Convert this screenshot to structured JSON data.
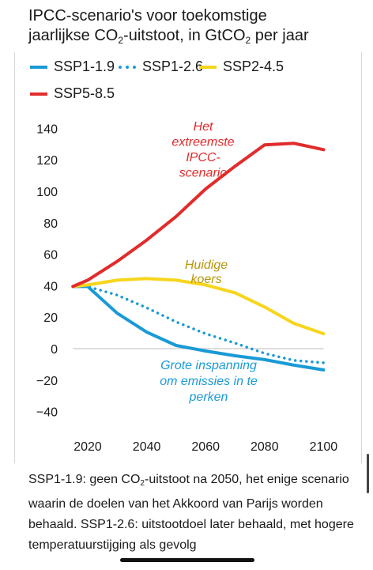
{
  "title": {
    "line1": "IPCC-scenario's voor toekomstige",
    "line2_pre": "jaarlijkse CO",
    "sub1": "2",
    "line2_mid": "-uitstoot, in GtCO",
    "sub2": "2",
    "line2_post": " per jaar"
  },
  "chart_data": {
    "type": "line",
    "x": [
      2015,
      2020,
      2030,
      2040,
      2050,
      2060,
      2070,
      2080,
      2090,
      2100
    ],
    "series": [
      {
        "name": "SSP1-1.9",
        "color": "#1a9ad6",
        "style": "solid",
        "values": [
          39.5,
          39.5,
          22.5,
          10.5,
          2,
          -1.5,
          -4.5,
          -7,
          -10.5,
          -13.5
        ]
      },
      {
        "name": "SSP1-2.6",
        "color": "#1a9ad6",
        "style": "dotted",
        "values": [
          39.5,
          39.5,
          34,
          26,
          17,
          9.5,
          3.5,
          -3,
          -7.5,
          -9
        ]
      },
      {
        "name": "SSP2-4.5",
        "color": "#f7d51d",
        "style": "solid",
        "values": [
          39.5,
          40.5,
          43.5,
          44.5,
          43.5,
          40.5,
          35.5,
          26.5,
          16,
          9.5
        ]
      },
      {
        "name": "SSP5-8.5",
        "color": "#e22b2b",
        "style": "solid",
        "values": [
          39.5,
          43.5,
          55.5,
          69,
          84,
          101.5,
          116,
          129.5,
          130.5,
          126.5
        ]
      }
    ],
    "ylim": [
      -40,
      140
    ],
    "xlim": [
      2015,
      2100
    ],
    "yticks": [
      "140",
      "120",
      "100",
      "80",
      "60",
      "40",
      "20",
      "0",
      "−20",
      "−40"
    ],
    "ytick_values": [
      140,
      120,
      100,
      80,
      60,
      40,
      20,
      0,
      -20,
      -40
    ],
    "xticks": [
      "2020",
      "2040",
      "2060",
      "2080",
      "2100"
    ],
    "xtick_values": [
      2020,
      2040,
      2060,
      2080,
      2100
    ],
    "grid": false,
    "legend_placement": "top",
    "annotations": [
      {
        "lines": [
          "Het",
          "extreemste",
          "IPCC-",
          "scenario"
        ],
        "color": "#e22b2b"
      },
      {
        "lines": [
          "Huidige",
          "koers"
        ],
        "color": "#b8960b"
      },
      {
        "lines": [
          "Grote inspanning",
          "om emissies in te",
          "perken"
        ],
        "color": "#1a9ad6"
      }
    ]
  },
  "caption": {
    "part1": "SSP1-1.9: geen CO",
    "sub": "2",
    "part2": "-uitstoot na 2050, het enige scenario waarin de doelen van het Akkoord van Parijs worden behaald. SSP1-2.6: uitstootdoel later behaald, met hogere temperatuurstijging als gevolg"
  }
}
